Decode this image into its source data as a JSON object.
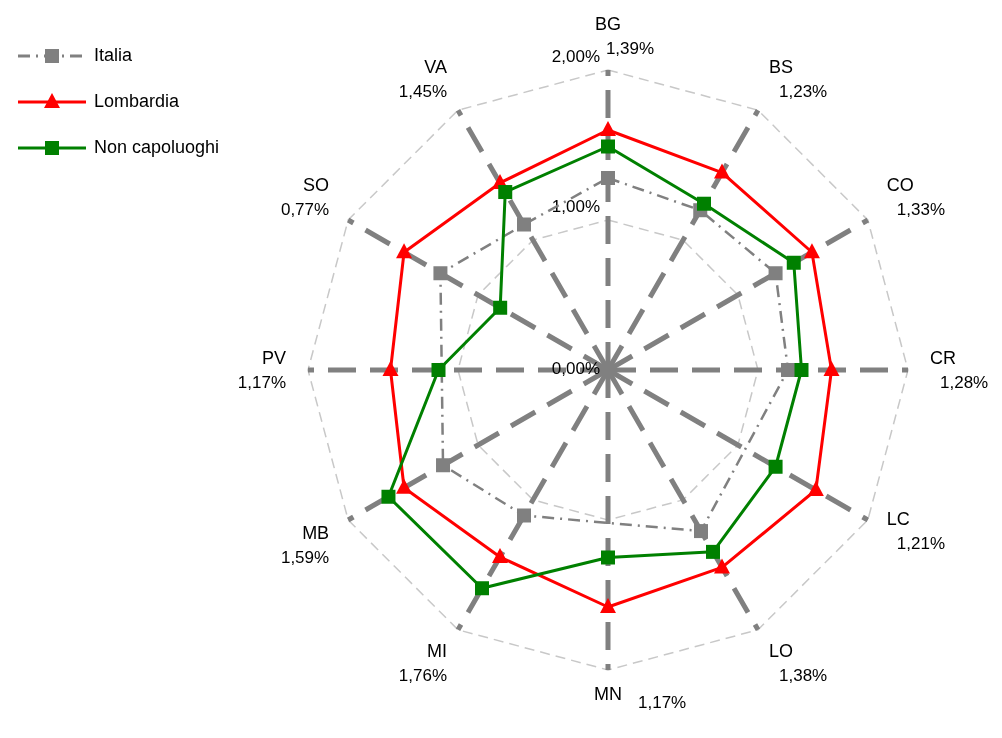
{
  "chart_data": {
    "type": "radar",
    "categories": [
      "BG",
      "BS",
      "CO",
      "CR",
      "LC",
      "LO",
      "MN",
      "MI",
      "MB",
      "PV",
      "SO",
      "VA"
    ],
    "series": [
      {
        "name": "Italia",
        "color": "#808080",
        "line_style": "dashdot",
        "marker": "square",
        "values": [
          1.28,
          1.23,
          1.29,
          1.2,
          null,
          1.24,
          null,
          1.12,
          1.27,
          null,
          1.29,
          1.12
        ]
      },
      {
        "name": "Lombardia",
        "color": "#ff0000",
        "line_style": "solid",
        "marker": "triangle",
        "values": [
          1.6,
          1.52,
          1.57,
          1.49,
          1.6,
          1.52,
          1.58,
          1.44,
          1.57,
          1.45,
          1.57,
          1.44
        ]
      },
      {
        "name": "Non capoluoghi",
        "color": "#008000",
        "line_style": "solid",
        "marker": "square",
        "values": [
          1.49,
          1.28,
          1.43,
          1.29,
          1.29,
          1.4,
          1.25,
          1.68,
          1.69,
          1.13,
          0.83,
          1.37
        ]
      }
    ],
    "ylim": [
      0,
      2
    ],
    "yticks": [
      {
        "value": 0,
        "label": "0,00%"
      },
      {
        "value": 1,
        "label": "1,00%"
      },
      {
        "value": 2,
        "label": "2,00%"
      }
    ],
    "annotations": [
      "1,39%",
      "1,23%",
      "1,33%",
      "1,28%",
      "1,21%",
      "1,38%",
      "1,17%",
      "1,76%",
      "1,59%",
      "1,17%",
      "0,77%",
      "1,45%"
    ],
    "grid": true,
    "legend": "top left"
  }
}
